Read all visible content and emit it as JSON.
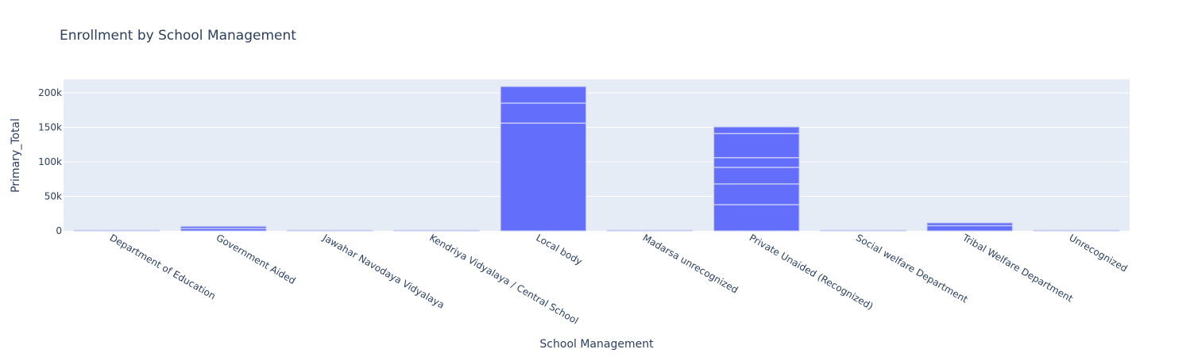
{
  "chart_data": {
    "type": "bar",
    "title": "Enrollment by School Management",
    "xlabel": "School Management",
    "ylabel": "Primary_Total",
    "categories": [
      "Department of Education",
      "Government Aided",
      "Jawahar Navodaya Vidyalaya",
      "Kendriya Vidyalaya / Central School",
      "Local body",
      "Madarsa unrecognized",
      "Private Unaided (Recognized)",
      "Social welfare Department",
      "Tribal Welfare Department",
      "Unrecognized"
    ],
    "values": [
      300,
      6500,
      200,
      600,
      209000,
      200,
      150500,
      300,
      11500,
      600
    ],
    "segment_breaks": [
      [],
      [
        3500
      ],
      [],
      [],
      [
        156000,
        185000
      ],
      [],
      [
        38000,
        68000,
        92000,
        106000,
        141000
      ],
      [],
      [
        7500
      ],
      []
    ],
    "ylim": [
      0,
      220000
    ],
    "yticks": [
      0,
      50000,
      100000,
      150000,
      200000
    ],
    "ytick_labels": [
      "0",
      "50k",
      "100k",
      "150k",
      "200k"
    ],
    "grid": true,
    "colors": {
      "bar": "#636efa",
      "plot_bg": "#e5ecf6",
      "grid": "#ffffff",
      "text": "#2a3f5f"
    }
  }
}
